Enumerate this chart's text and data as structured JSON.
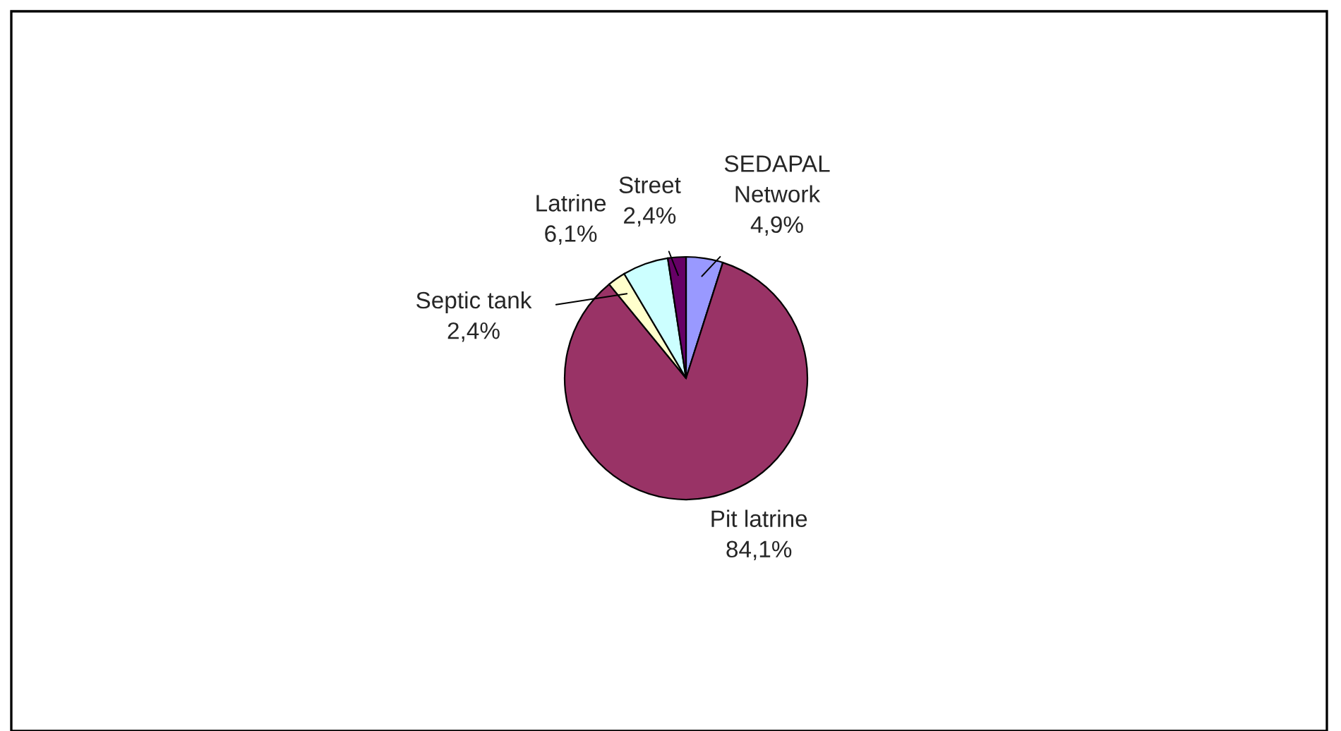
{
  "chart_data": {
    "type": "pie",
    "categories": [
      "SEDAPAL\nNetwork",
      "Pit latrine",
      "Septic tank",
      "Latrine",
      "Street"
    ],
    "values": [
      4.9,
      84.1,
      2.4,
      6.1,
      2.4
    ],
    "value_labels": [
      "4,9%",
      "84,1%",
      "2,4%",
      "6,1%",
      "2,4%"
    ],
    "colors": [
      "#9999ff",
      "#993366",
      "#ffffcc",
      "#ccffff",
      "#660066"
    ]
  }
}
